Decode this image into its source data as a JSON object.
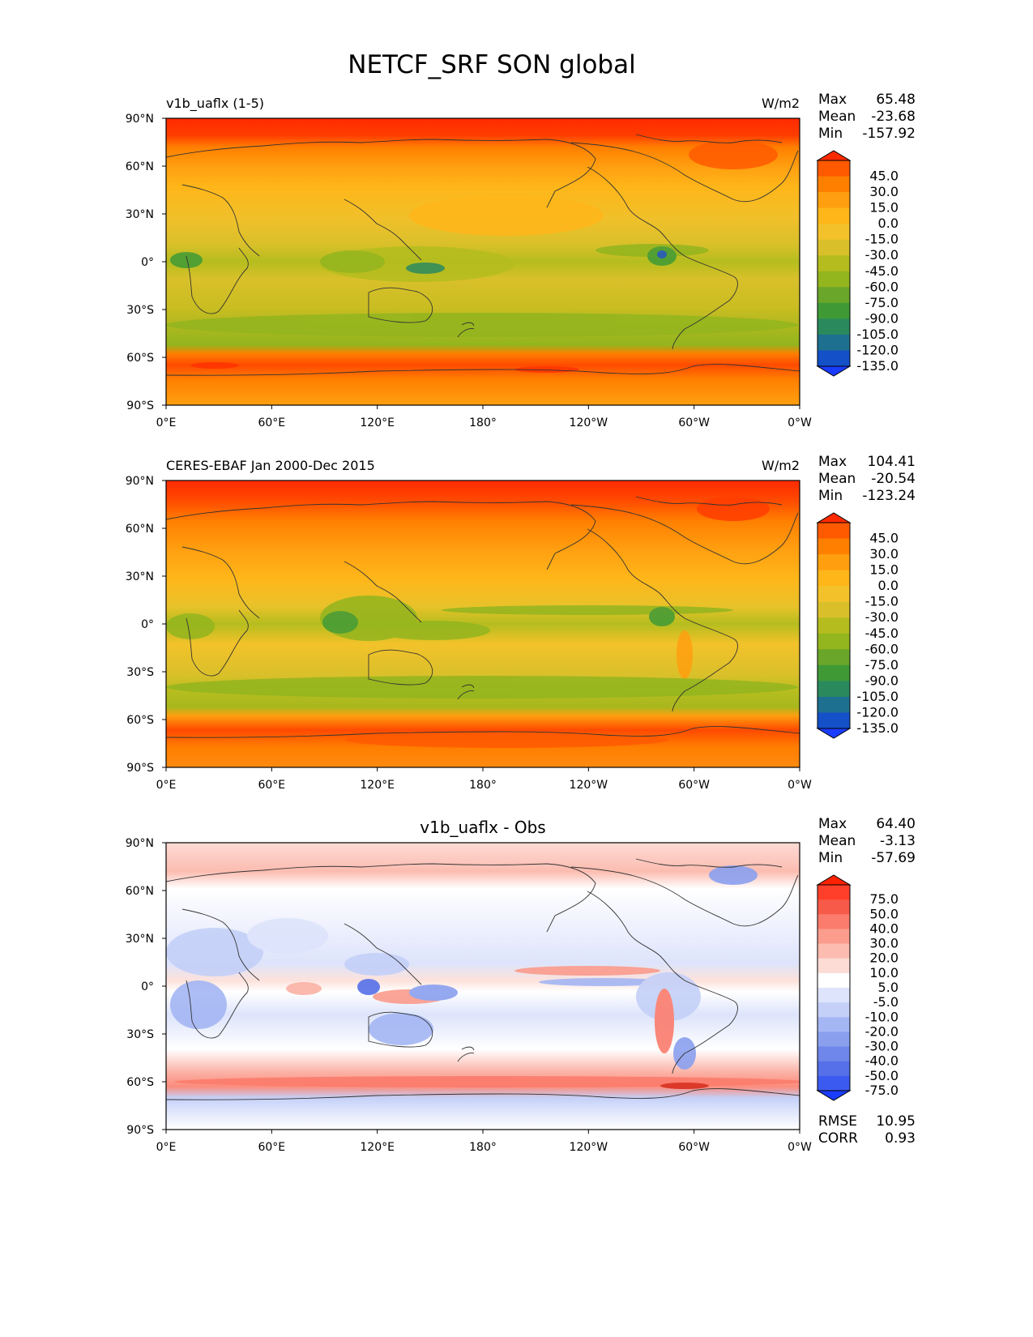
{
  "figure": {
    "title": "NETCF_SRF SON global"
  },
  "axes": {
    "lat_labels": [
      "90°N",
      "60°N",
      "30°N",
      "0°",
      "30°S",
      "60°S",
      "90°S"
    ],
    "lon_labels": [
      "0°E",
      "60°E",
      "120°E",
      "180°",
      "120°W",
      "60°W",
      "0°W"
    ]
  },
  "panels": [
    {
      "id": "model",
      "title_left": "v1b_uaflx (1-5)",
      "title_center": "",
      "units": "W/m2",
      "stats": {
        "max_label": "Max",
        "max": "65.48",
        "mean_label": "Mean",
        "mean": "-23.68",
        "min_label": "Min",
        "min": "-157.92"
      },
      "colorbar": {
        "labels": [
          "45.0",
          "30.0",
          "15.0",
          "0.0",
          "-15.0",
          "-30.0",
          "-45.0",
          "-60.0",
          "-75.0",
          "-90.0",
          "-105.0",
          "-120.0",
          "-135.0"
        ],
        "colors": [
          "#ff2a00",
          "#ff5a00",
          "#ff7f00",
          "#ff9f10",
          "#ffb619",
          "#f3c22a",
          "#d9c02a",
          "#b5bd1e",
          "#93b51e",
          "#6aa62a",
          "#3f9a36",
          "#2a8a5e",
          "#1e7090",
          "#1450c8",
          "#1a3cff"
        ]
      },
      "footer": null
    },
    {
      "id": "obs",
      "title_left": "CERES-EBAF Jan 2000-Dec 2015",
      "title_center": "",
      "units": "W/m2",
      "stats": {
        "max_label": "Max",
        "max": "104.41",
        "mean_label": "Mean",
        "mean": "-20.54",
        "min_label": "Min",
        "min": "-123.24"
      },
      "colorbar": {
        "labels": [
          "45.0",
          "30.0",
          "15.0",
          "0.0",
          "-15.0",
          "-30.0",
          "-45.0",
          "-60.0",
          "-75.0",
          "-90.0",
          "-105.0",
          "-120.0",
          "-135.0"
        ],
        "colors": [
          "#ff2a00",
          "#ff5a00",
          "#ff7f00",
          "#ff9f10",
          "#ffb619",
          "#f3c22a",
          "#d9c02a",
          "#b5bd1e",
          "#93b51e",
          "#6aa62a",
          "#3f9a36",
          "#2a8a5e",
          "#1e7090",
          "#1450c8",
          "#1a3cff"
        ]
      },
      "footer": null
    },
    {
      "id": "diff",
      "title_left": "",
      "title_center": "v1b_uaflx - Obs",
      "units": "",
      "stats": {
        "max_label": "Max",
        "max": "64.40",
        "mean_label": "Mean",
        "mean": "-3.13",
        "min_label": "Min",
        "min": "-57.69"
      },
      "colorbar": {
        "labels": [
          "75.0",
          "50.0",
          "40.0",
          "30.0",
          "20.0",
          "10.0",
          "5.0",
          "-5.0",
          "-10.0",
          "-20.0",
          "-30.0",
          "-40.0",
          "-50.0",
          "-75.0"
        ],
        "colors": [
          "#ff2200",
          "#ff3f2a",
          "#f85a4a",
          "#fb7c6c",
          "#fb9c8c",
          "#fcbcb0",
          "#fddcd6",
          "#ffffff",
          "#dde4fb",
          "#c4d0f8",
          "#a4b6f4",
          "#8aa0ef",
          "#6f86ea",
          "#5570e8",
          "#3a5af0",
          "#1a3cff"
        ]
      },
      "footer": {
        "rmse_label": "RMSE",
        "rmse": "10.95",
        "corr_label": "CORR",
        "corr": "0.93"
      }
    }
  ]
}
